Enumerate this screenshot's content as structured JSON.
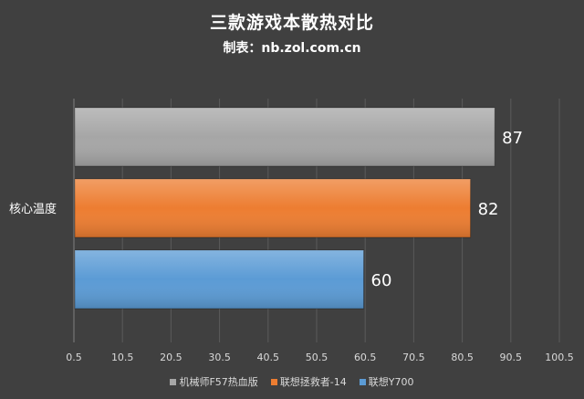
{
  "chart_data": {
    "type": "bar",
    "orientation": "horizontal",
    "title": "三款游戏本散热对比",
    "subtitle": "制表：nb.zol.com.cn",
    "categories": [
      "核心温度"
    ],
    "series": [
      {
        "name": "机械师F57热血版",
        "values": [
          87
        ],
        "color": "#a6a6a6",
        "label": "87"
      },
      {
        "name": "联想拯救者-14",
        "values": [
          82
        ],
        "color": "#ed7d31",
        "label": "82"
      },
      {
        "name": "联想Y700",
        "values": [
          60
        ],
        "color": "#5b9bd5",
        "label": "60"
      }
    ],
    "xlim": [
      0.5,
      100.5
    ],
    "xticks": [
      "0.5",
      "10.5",
      "20.5",
      "30.5",
      "40.5",
      "50.5",
      "60.5",
      "70.5",
      "80.5",
      "90.5",
      "100.5"
    ],
    "grid": true,
    "legend_position": "bottom"
  }
}
